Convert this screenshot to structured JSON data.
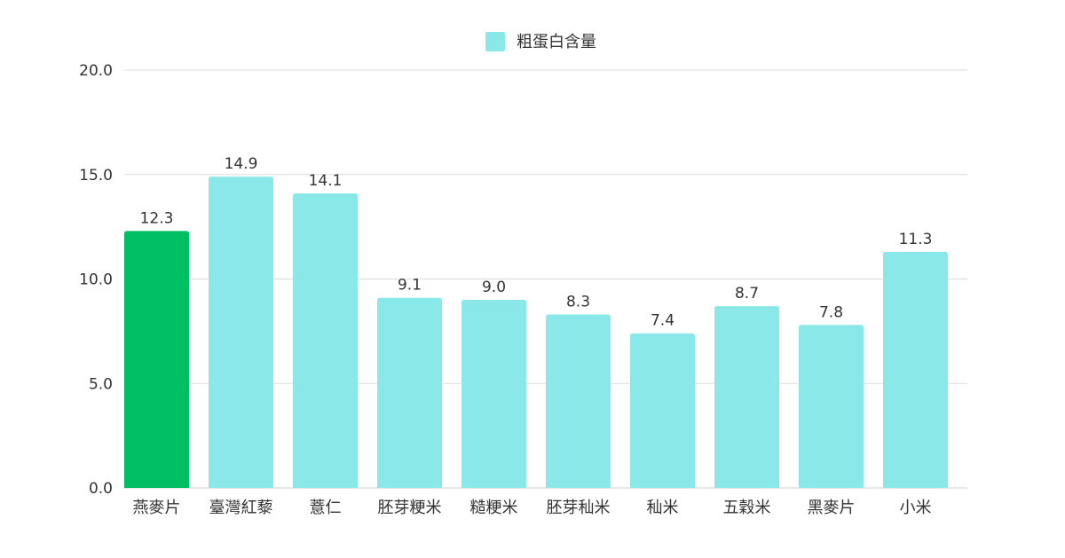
{
  "chart_data": {
    "type": "bar",
    "categories": [
      "燕麥片",
      "臺灣紅藜",
      "薏仁",
      "胚芽粳米",
      "糙粳米",
      "胚芽秈米",
      "秈米",
      "五穀米",
      "黑麥片",
      "小米"
    ],
    "series": [
      {
        "name": "粗蛋白含量",
        "values": [
          12.3,
          14.9,
          14.1,
          9.1,
          9.0,
          8.3,
          7.4,
          8.7,
          7.8,
          11.3
        ],
        "value_labels": [
          "12.3",
          "14.9",
          "14.1",
          "9.1",
          "9.0",
          "8.3",
          "7.4",
          "8.7",
          "7.8",
          "11.3"
        ]
      }
    ],
    "ylim": [
      0,
      20
    ],
    "yticks": [
      "0.0",
      "5.0",
      "10.0",
      "15.0",
      "20.0"
    ],
    "ytick_values": [
      0,
      5,
      10,
      15,
      20
    ],
    "highlight_index": 0,
    "grid": true,
    "legend_position": "top-center",
    "colors": {
      "bar": "#8be8e8",
      "highlight": "#00bf63",
      "grid": "#dddddd",
      "text": "#333333"
    }
  }
}
